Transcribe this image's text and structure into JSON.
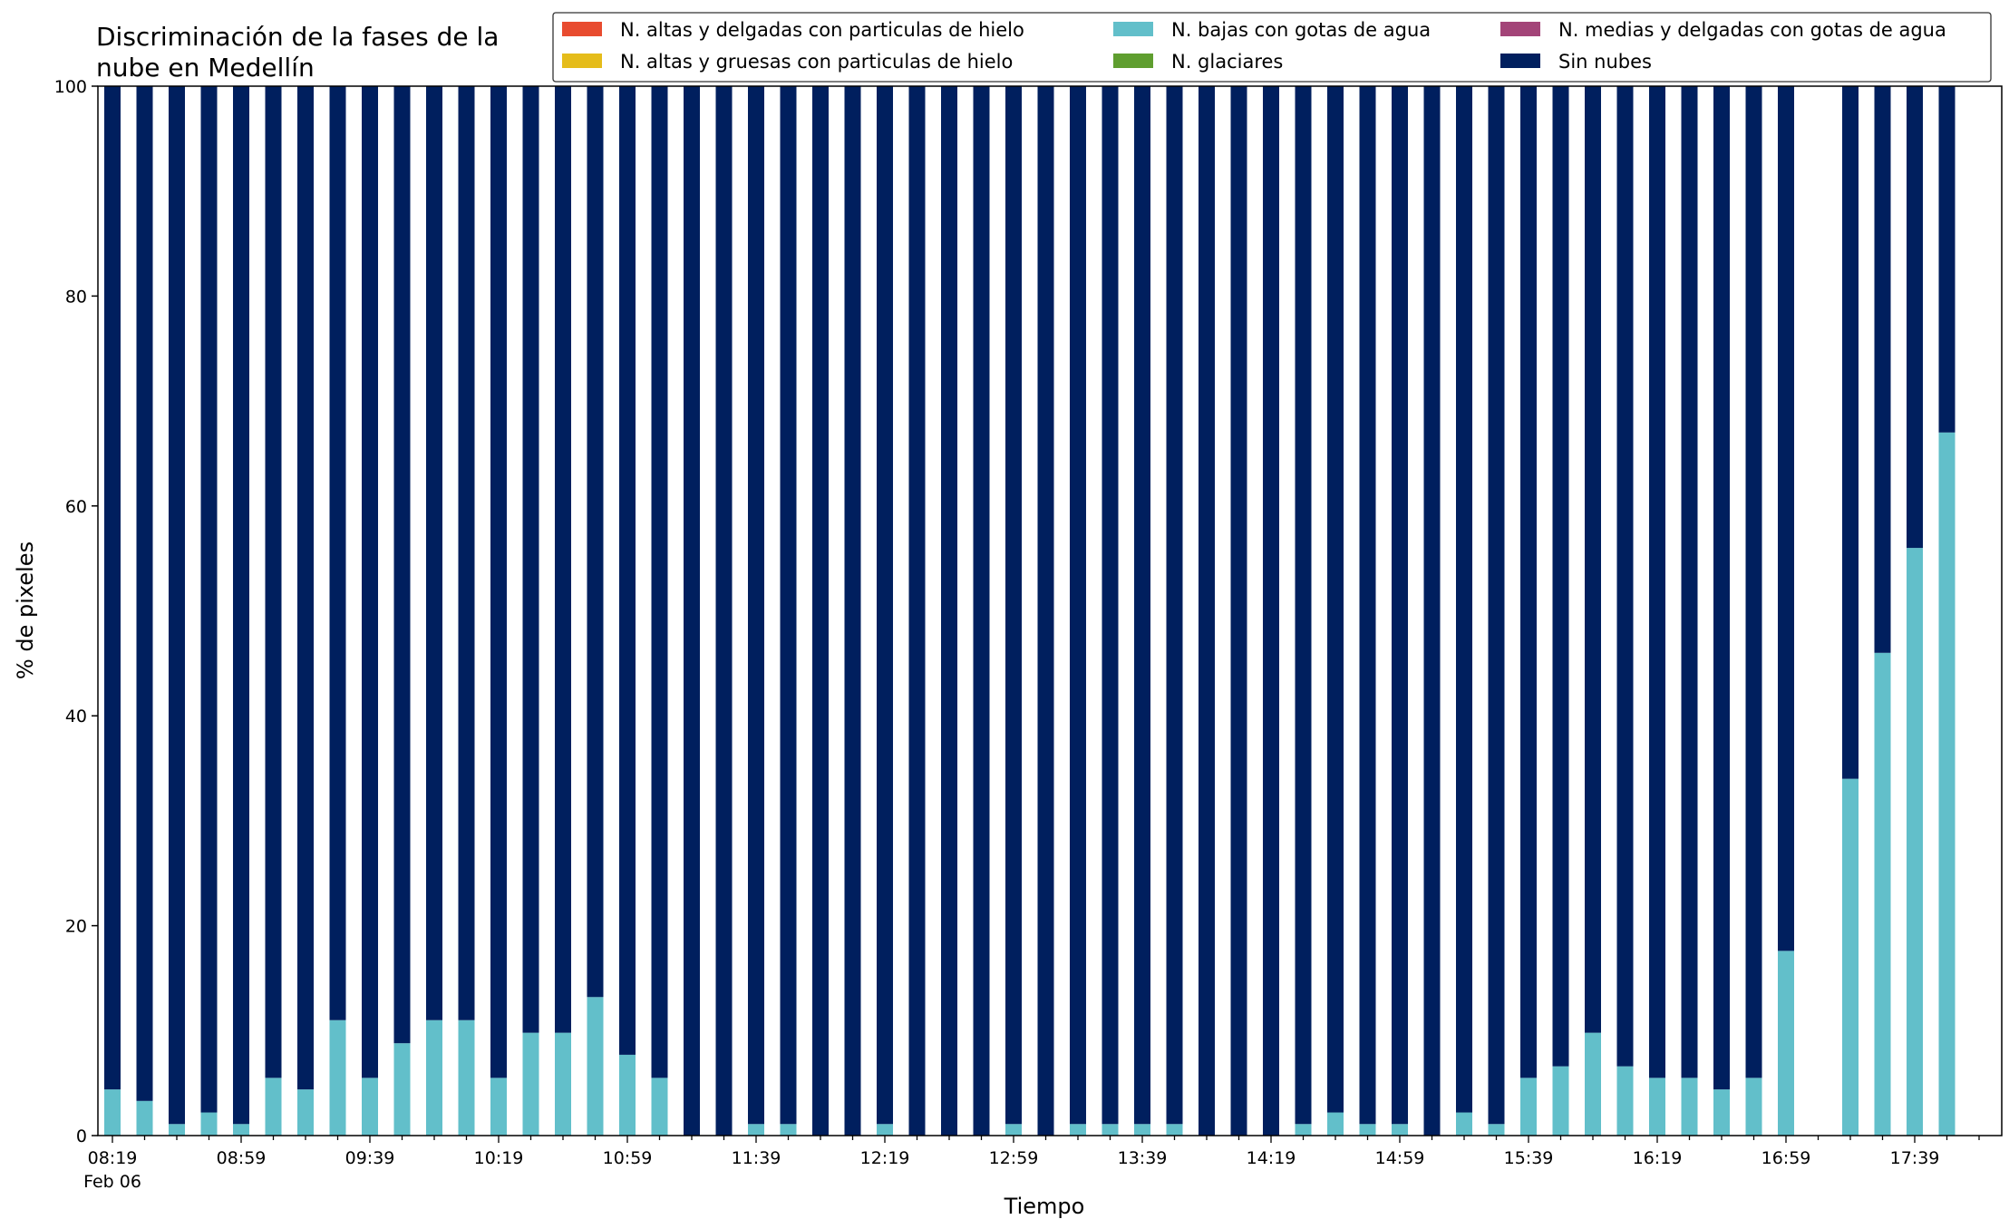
{
  "chart_data": {
    "type": "bar",
    "stacked": true,
    "title_lines": [
      "Discriminación de la fases de la",
      "nube en Medellín"
    ],
    "xlabel": "Tiempo",
    "ylabel": "% de pixeles",
    "ylim": [
      0,
      100
    ],
    "y_ticks": [
      "0",
      "20",
      "40",
      "60",
      "80",
      "100"
    ],
    "x_tick_labels": [
      "08:19",
      "08:59",
      "09:39",
      "10:19",
      "10:59",
      "11:39",
      "12:19",
      "12:59",
      "13:39",
      "14:19",
      "14:59",
      "15:39",
      "16:19",
      "16:59",
      "17:39"
    ],
    "x_sublabel": "Feb 06",
    "grid": false,
    "legend_position": "top",
    "legend": [
      {
        "name": "N. altas y delgadas con particulas de hielo",
        "color": "#e84b2f"
      },
      {
        "name": "N. altas y gruesas con particulas de hielo",
        "color": "#e5bc1a"
      },
      {
        "name": "N. bajas con gotas de agua",
        "color": "#62bfca"
      },
      {
        "name": "N. glaciares",
        "color": "#5f9e2f"
      },
      {
        "name": "N. medias y delgadas con gotas de agua",
        "color": "#a34478"
      },
      {
        "name": "Sin nubes",
        "color": "#001f5e"
      }
    ],
    "bar_count": 59,
    "series": [
      {
        "name": "N. bajas con gotas de agua",
        "color": "#62bfca",
        "values": [
          4.4,
          3.3,
          1.1,
          2.2,
          1.1,
          5.5,
          4.4,
          11,
          5.5,
          8.8,
          11,
          11,
          5.5,
          9.8,
          9.8,
          13.2,
          7.7,
          5.5,
          0,
          0,
          1.1,
          1.1,
          0,
          0,
          1.1,
          0,
          0,
          0,
          1.1,
          0,
          1.1,
          1.1,
          1.1,
          1.1,
          0,
          0,
          0,
          1.1,
          2.2,
          1.1,
          1.1,
          0,
          2.2,
          1.1,
          5.5,
          6.6,
          9.8,
          6.6,
          5.5,
          5.5,
          4.4,
          5.5,
          17.6,
          0,
          34,
          46,
          56,
          67,
          null
        ]
      },
      {
        "name": "Sin nubes",
        "color": "#001f5e",
        "values": [
          95.6,
          96.7,
          98.9,
          97.8,
          98.9,
          94.5,
          95.6,
          89,
          94.5,
          91.2,
          89,
          89,
          94.5,
          90.2,
          90.2,
          86.8,
          92.3,
          94.5,
          100,
          100,
          98.9,
          98.9,
          100,
          100,
          98.9,
          100,
          100,
          100,
          98.9,
          100,
          98.9,
          98.9,
          98.9,
          98.9,
          100,
          100,
          100,
          98.9,
          97.8,
          98.9,
          98.9,
          100,
          97.8,
          98.9,
          94.5,
          93.4,
          90.2,
          93.4,
          94.5,
          94.5,
          95.6,
          94.5,
          82.4,
          0,
          66,
          54,
          44,
          33,
          null
        ]
      }
    ]
  }
}
